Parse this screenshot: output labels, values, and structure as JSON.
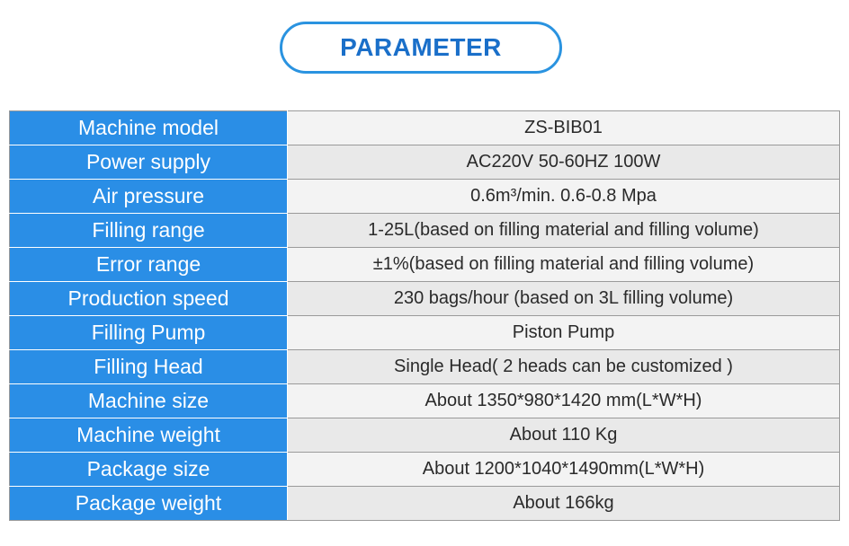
{
  "title": "PARAMETER",
  "rows": [
    {
      "label": "Machine model",
      "value": "ZS-BIB01"
    },
    {
      "label": "Power supply",
      "value": "AC220V 50-60HZ 100W"
    },
    {
      "label": "Air pressure",
      "value": "0.6m³/min. 0.6-0.8 Mpa"
    },
    {
      "label": "Filling range",
      "value": "1-25L(based on filling material and filling volume)"
    },
    {
      "label": "Error range",
      "value": "±1%(based on filling material and filling volume)"
    },
    {
      "label": "Production speed",
      "value": "230 bags/hour (based on 3L filling volume)"
    },
    {
      "label": "Filling Pump",
      "value": "Piston Pump"
    },
    {
      "label": "Filling Head",
      "value": "Single Head( 2 heads can be customized )"
    },
    {
      "label": "Machine size",
      "value": "About 1350*980*1420 mm(L*W*H)"
    },
    {
      "label": "Machine weight",
      "value": "About 110 Kg"
    },
    {
      "label": "Package size",
      "value": "About 1200*1040*1490mm(L*W*H)"
    },
    {
      "label": "Package weight",
      "value": "About 166kg"
    }
  ]
}
